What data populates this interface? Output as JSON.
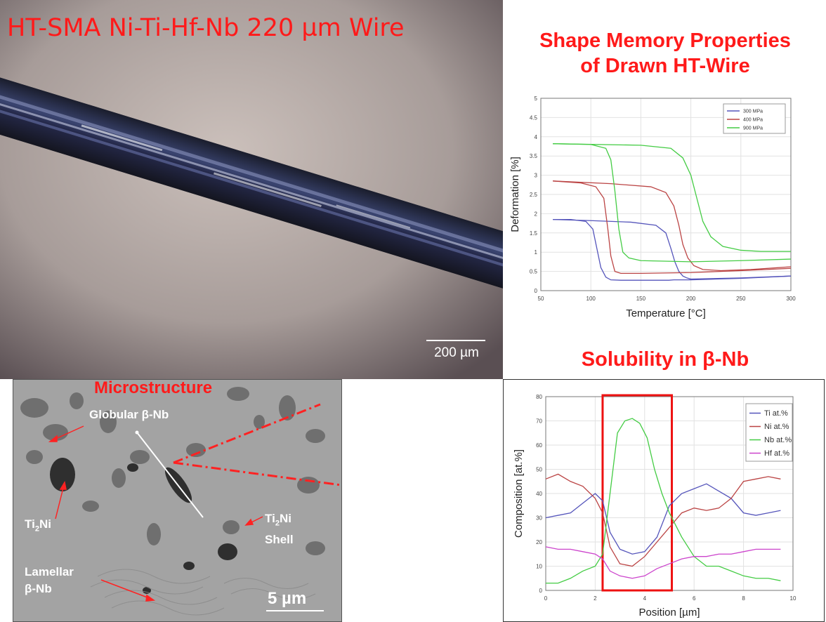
{
  "photo": {
    "title": "HT-SMA Ni-Ti-Hf-Nb 220 µm Wire",
    "scalebar_label": "200 µm"
  },
  "micro": {
    "title": "Microstructure",
    "labels": {
      "globular": "Globular β-Nb",
      "ti2ni_a": "Ti",
      "ti2ni_a_sub": "2",
      "ti2ni_a_tail": "Ni",
      "ti2ni_b": "Ti",
      "ti2ni_b_sub": "2",
      "ti2ni_b_tail": "Ni",
      "shell": "Shell",
      "lamellar_1": "Lamellar",
      "lamellar_2": "β-Nb"
    },
    "scalebar_label": "5 µm"
  },
  "sm_title_1": "Shape Memory Properties",
  "sm_title_2": "of Drawn HT-Wire",
  "sol_title": "Solubility in β-Nb",
  "colors": {
    "accent_red": "#ff1a1a",
    "blue": "#5555bb",
    "red": "#bb4444",
    "green": "#44cc44",
    "magenta": "#cc44cc"
  },
  "chart_data": [
    {
      "type": "line",
      "title": "",
      "xlabel": "Temperature [°C]",
      "ylabel": "Deformation [%]",
      "xlim": [
        50,
        300
      ],
      "ylim": [
        0,
        5
      ],
      "xticks": [
        50,
        100,
        150,
        200,
        250,
        300
      ],
      "yticks": [
        0,
        0.5,
        1,
        1.5,
        2,
        2.5,
        3,
        3.5,
        4,
        4.5,
        5
      ],
      "grid": true,
      "legend": "top-right",
      "series": [
        {
          "name": "300 MPa",
          "color": "#5555bb",
          "x": [
            62,
            80,
            95,
            102,
            106,
            110,
            115,
            120,
            130,
            150,
            170,
            178,
            183,
            186,
            188,
            192,
            200,
            250,
            300
          ],
          "y": [
            1.85,
            1.85,
            1.8,
            1.6,
            1.1,
            0.6,
            0.35,
            0.28,
            0.27,
            0.27,
            0.27,
            0.27,
            0.28,
            0.28,
            0.28,
            0.28,
            0.28,
            0.32,
            0.38
          ],
          "x2": [
            62,
            100,
            140,
            165,
            175,
            180,
            184,
            188,
            192,
            196,
            200,
            250,
            300
          ],
          "y2": [
            1.85,
            1.82,
            1.78,
            1.7,
            1.5,
            1.1,
            0.75,
            0.5,
            0.38,
            0.33,
            0.3,
            0.33,
            0.38
          ]
        },
        {
          "name": "400 MPa",
          "color": "#bb4444",
          "x": [
            62,
            90,
            105,
            113,
            117,
            120,
            124,
            130,
            150,
            200,
            250,
            300
          ],
          "y": [
            2.85,
            2.8,
            2.7,
            2.4,
            1.6,
            0.9,
            0.5,
            0.45,
            0.45,
            0.47,
            0.52,
            0.58
          ],
          "x2": [
            62,
            120,
            160,
            175,
            183,
            188,
            192,
            197,
            203,
            212,
            230,
            260,
            300
          ],
          "y2": [
            2.85,
            2.78,
            2.7,
            2.55,
            2.2,
            1.7,
            1.2,
            0.85,
            0.65,
            0.55,
            0.52,
            0.55,
            0.62
          ]
        },
        {
          "name": "900 MPa",
          "color": "#44cc44",
          "x": [
            62,
            100,
            115,
            120,
            124,
            128,
            132,
            138,
            150,
            200,
            250,
            300
          ],
          "y": [
            3.82,
            3.8,
            3.7,
            3.4,
            2.6,
            1.6,
            1.0,
            0.85,
            0.78,
            0.75,
            0.78,
            0.82
          ],
          "x2": [
            62,
            150,
            180,
            192,
            200,
            206,
            212,
            220,
            232,
            250,
            270,
            300
          ],
          "y2": [
            3.82,
            3.78,
            3.7,
            3.45,
            3.0,
            2.4,
            1.8,
            1.4,
            1.15,
            1.05,
            1.02,
            1.02
          ]
        }
      ]
    },
    {
      "type": "line",
      "title": "",
      "xlabel": "Position [µm]",
      "ylabel": "Composition [at.%]",
      "xlim": [
        0,
        10
      ],
      "ylim": [
        0,
        80
      ],
      "xticks": [
        0,
        2,
        4,
        6,
        8,
        10
      ],
      "yticks": [
        0,
        10,
        20,
        30,
        40,
        50,
        60,
        70,
        80
      ],
      "grid": true,
      "legend": "top-right",
      "highlight_x": [
        2.3,
        5.1
      ],
      "series": [
        {
          "name": "Ti at.%",
          "color": "#5555bb",
          "x": [
            0,
            0.5,
            1,
            1.5,
            2,
            2.3,
            2.6,
            3,
            3.5,
            4,
            4.5,
            5,
            5.5,
            6,
            6.5,
            7,
            7.5,
            8,
            8.5,
            9,
            9.5
          ],
          "y": [
            30,
            31,
            32,
            36,
            40,
            37,
            24,
            17,
            15,
            16,
            22,
            35,
            40,
            42,
            44,
            41,
            38,
            32,
            31,
            32,
            33
          ]
        },
        {
          "name": "Ni at.%",
          "color": "#bb4444",
          "x": [
            0,
            0.5,
            1,
            1.5,
            2,
            2.3,
            2.6,
            3,
            3.5,
            4,
            4.5,
            5,
            5.5,
            6,
            6.5,
            7,
            7.5,
            8,
            8.5,
            9,
            9.5
          ],
          "y": [
            46,
            48,
            45,
            43,
            38,
            32,
            18,
            11,
            10,
            14,
            20,
            26,
            32,
            34,
            33,
            34,
            38,
            45,
            46,
            47,
            46
          ]
        },
        {
          "name": "Nb at.%",
          "color": "#44cc44",
          "x": [
            0,
            0.5,
            1,
            1.5,
            2,
            2.3,
            2.6,
            2.9,
            3.2,
            3.5,
            3.8,
            4.1,
            4.4,
            4.7,
            5,
            5.5,
            6,
            6.5,
            7,
            7.5,
            8,
            8.5,
            9,
            9.5
          ],
          "y": [
            3,
            3,
            5,
            8,
            10,
            15,
            40,
            65,
            70,
            71,
            69,
            63,
            50,
            40,
            32,
            22,
            14,
            10,
            10,
            8,
            6,
            5,
            5,
            4
          ]
        },
        {
          "name": "Hf at.%",
          "color": "#cc44cc",
          "x": [
            0,
            0.5,
            1,
            1.5,
            2,
            2.3,
            2.6,
            3,
            3.5,
            4,
            4.5,
            5,
            5.5,
            6,
            6.5,
            7,
            7.5,
            8,
            8.5,
            9,
            9.5
          ],
          "y": [
            18,
            17,
            17,
            16,
            15,
            13,
            8,
            6,
            5,
            6,
            9,
            11,
            13,
            14,
            14,
            15,
            15,
            16,
            17,
            17,
            17
          ]
        }
      ]
    }
  ]
}
